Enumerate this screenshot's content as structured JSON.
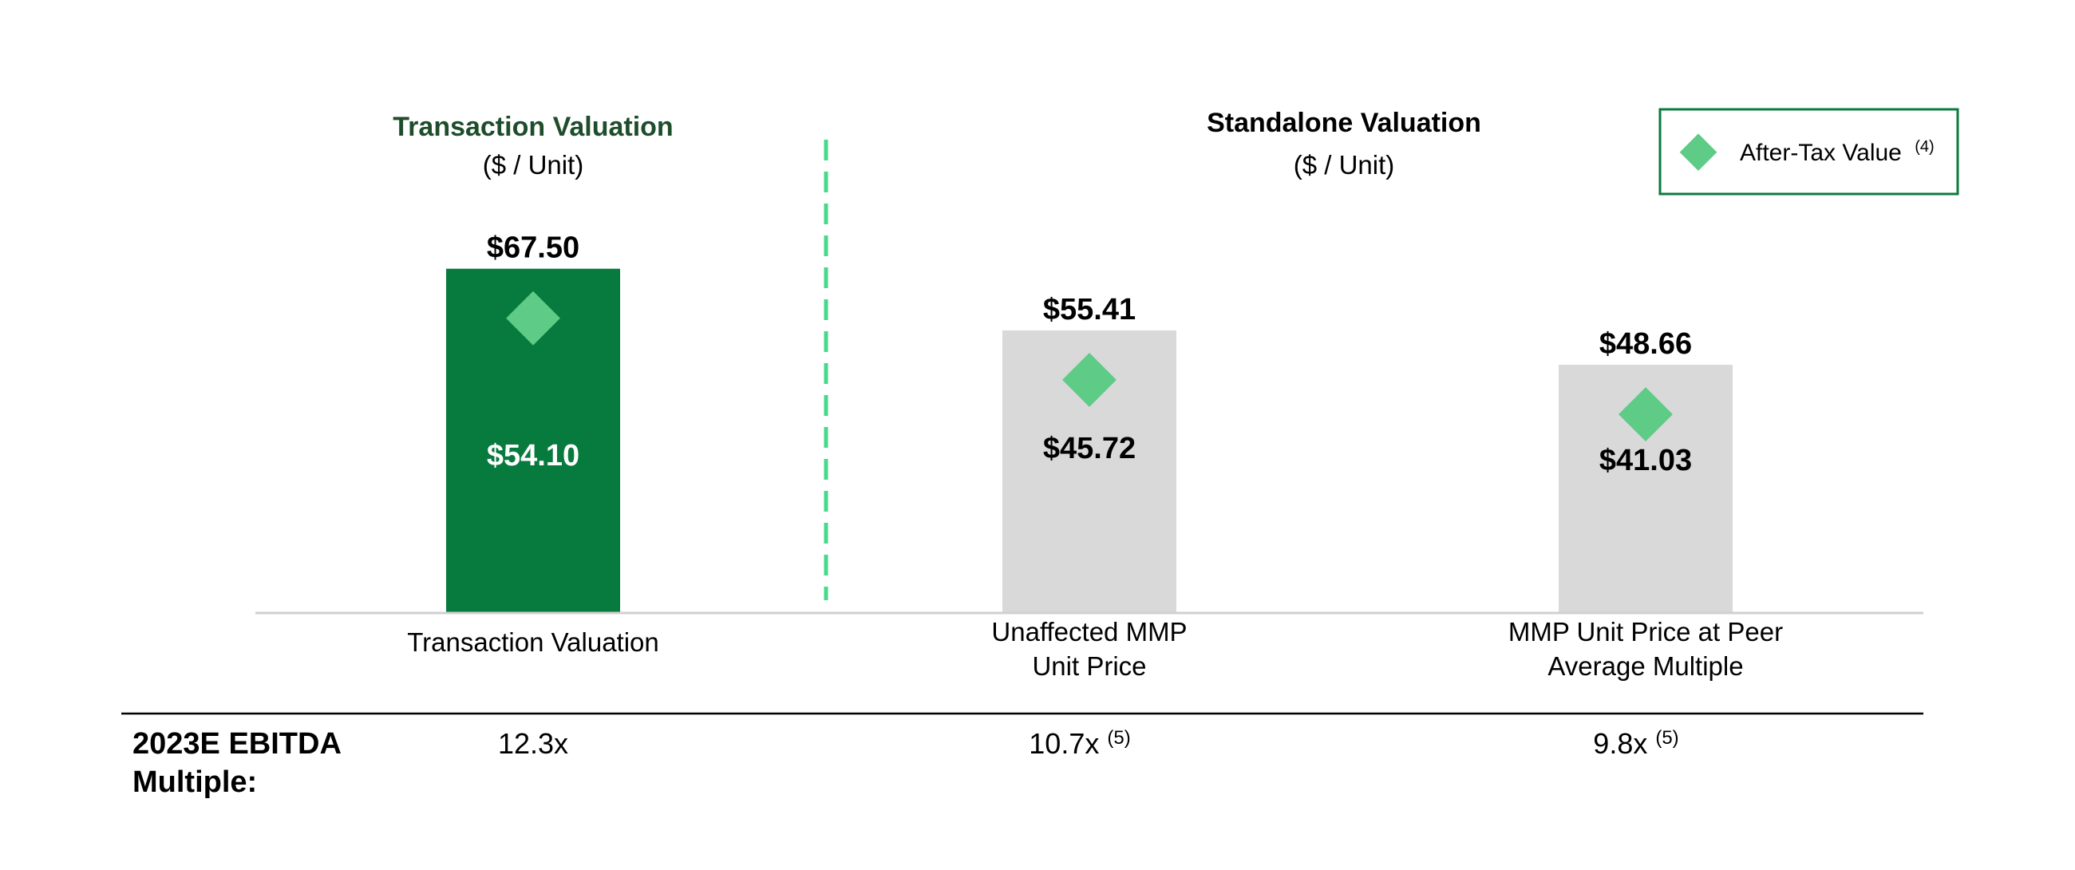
{
  "chart_data": {
    "type": "bar",
    "unit_prefix": "$",
    "ylim": [
      0,
      80
    ],
    "sections": [
      {
        "title": "Transaction Valuation",
        "subtitle": "($ / Unit)",
        "title_color": "#1E4D2B"
      },
      {
        "title": "Standalone Valuation",
        "subtitle": "($ / Unit)",
        "title_color": "#000000"
      }
    ],
    "legend": {
      "label": "After-Tax Value",
      "superscript": "(4)",
      "marker": "diamond",
      "position": "top-right"
    },
    "categories": [
      {
        "label_lines": [
          "Transaction Valuation"
        ],
        "total_label": "$67.50",
        "total": 67.5,
        "after_tax_label": "$54.10",
        "after_tax": 54.1,
        "bar_color": "#077A3E",
        "value_text_color": "#FFFFFF",
        "multiple": "12.3x",
        "multiple_note": ""
      },
      {
        "label_lines": [
          "Unaffected MMP",
          "Unit Price"
        ],
        "total_label": "$55.41",
        "total": 55.41,
        "after_tax_label": "$45.72",
        "after_tax": 45.72,
        "bar_color": "#D9D9D9",
        "value_text_color": "#000000",
        "multiple": "10.7x",
        "multiple_note": "(5)"
      },
      {
        "label_lines": [
          "MMP Unit Price at Peer",
          "Average Multiple"
        ],
        "total_label": "$48.66",
        "total": 48.66,
        "after_tax_label": "$41.03",
        "after_tax": 41.03,
        "bar_color": "#D9D9D9",
        "value_text_color": "#000000",
        "multiple": "9.8x",
        "multiple_note": "(5)"
      }
    ],
    "multiple_row_label_lines": [
      "2023E EBITDA",
      "Multiple:"
    ],
    "colors": {
      "diamond": "#5ECB86",
      "divider": "#46D98A",
      "legend_border": "#0B7A3E",
      "axis": "#D0D0D0",
      "separator": "#000000"
    }
  }
}
